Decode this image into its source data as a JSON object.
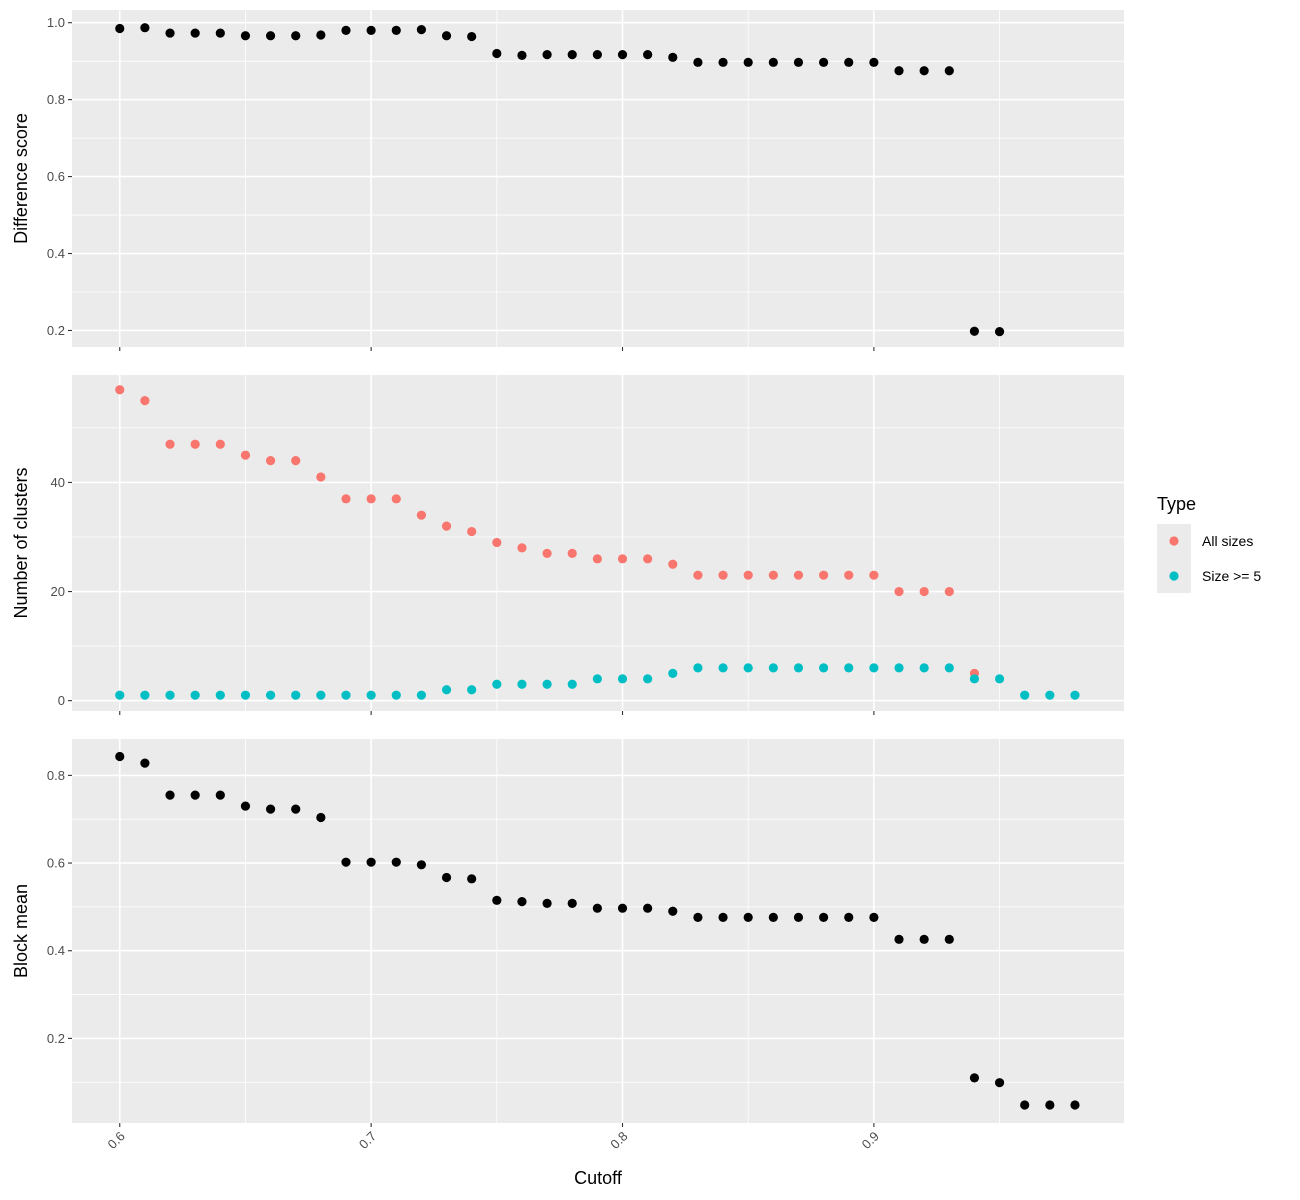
{
  "chart_data": {
    "type": "scatter",
    "x_label": "Cutoff",
    "x_ticks": [
      0.6,
      0.7,
      0.8,
      0.9
    ],
    "x_tick_labels": [
      "0.6",
      "0.7",
      "0.8",
      "0.9"
    ],
    "xlim": [
      0.581,
      0.9995
    ],
    "legend": {
      "title": "Type",
      "placement": "right",
      "entries": [
        {
          "label": "All sizes",
          "color": "#F8766D"
        },
        {
          "label": "Size >= 5",
          "color": "#00BFC4"
        }
      ]
    },
    "panels": [
      {
        "ylabel": "Difference score",
        "ylim": [
          0.157,
          1.033
        ],
        "y_ticks": [
          0.2,
          0.4,
          0.6,
          0.8,
          1.0
        ],
        "y_tick_labels": [
          "0.2",
          "0.4",
          "0.6",
          "0.8",
          "1.0"
        ],
        "series": [
          {
            "color": "#000000",
            "points": [
              [
                0.6,
                0.985
              ],
              [
                0.61,
                0.987
              ],
              [
                0.62,
                0.973
              ],
              [
                0.63,
                0.973
              ],
              [
                0.64,
                0.973
              ],
              [
                0.65,
                0.966
              ],
              [
                0.66,
                0.966
              ],
              [
                0.67,
                0.966
              ],
              [
                0.68,
                0.968
              ],
              [
                0.69,
                0.98
              ],
              [
                0.7,
                0.98
              ],
              [
                0.71,
                0.98
              ],
              [
                0.72,
                0.982
              ],
              [
                0.73,
                0.966
              ],
              [
                0.74,
                0.964
              ],
              [
                0.75,
                0.92
              ],
              [
                0.76,
                0.915
              ],
              [
                0.77,
                0.917
              ],
              [
                0.78,
                0.917
              ],
              [
                0.79,
                0.917
              ],
              [
                0.8,
                0.917
              ],
              [
                0.81,
                0.917
              ],
              [
                0.82,
                0.91
              ],
              [
                0.83,
                0.897
              ],
              [
                0.84,
                0.897
              ],
              [
                0.85,
                0.897
              ],
              [
                0.86,
                0.897
              ],
              [
                0.87,
                0.897
              ],
              [
                0.88,
                0.897
              ],
              [
                0.89,
                0.897
              ],
              [
                0.9,
                0.897
              ],
              [
                0.91,
                0.875
              ],
              [
                0.92,
                0.875
              ],
              [
                0.93,
                0.875
              ],
              [
                0.94,
                0.198
              ],
              [
                0.95,
                0.197
              ]
            ]
          }
        ]
      },
      {
        "ylabel": "Number of clusters",
        "ylim": [
          -1.9,
          59.7
        ],
        "y_ticks": [
          0,
          20,
          40
        ],
        "y_tick_labels": [
          "0",
          "20",
          "40"
        ],
        "series": [
          {
            "name": "All sizes",
            "color": "#F8766D",
            "points": [
              [
                0.6,
                57
              ],
              [
                0.61,
                55
              ],
              [
                0.62,
                47
              ],
              [
                0.63,
                47
              ],
              [
                0.64,
                47
              ],
              [
                0.65,
                45
              ],
              [
                0.66,
                44
              ],
              [
                0.67,
                44
              ],
              [
                0.68,
                41
              ],
              [
                0.69,
                37
              ],
              [
                0.7,
                37
              ],
              [
                0.71,
                37
              ],
              [
                0.72,
                34
              ],
              [
                0.73,
                32
              ],
              [
                0.74,
                31
              ],
              [
                0.75,
                29
              ],
              [
                0.76,
                28
              ],
              [
                0.77,
                27
              ],
              [
                0.78,
                27
              ],
              [
                0.79,
                26
              ],
              [
                0.8,
                26
              ],
              [
                0.81,
                26
              ],
              [
                0.82,
                25
              ],
              [
                0.83,
                23
              ],
              [
                0.84,
                23
              ],
              [
                0.85,
                23
              ],
              [
                0.86,
                23
              ],
              [
                0.87,
                23
              ],
              [
                0.88,
                23
              ],
              [
                0.89,
                23
              ],
              [
                0.9,
                23
              ],
              [
                0.91,
                20
              ],
              [
                0.92,
                20
              ],
              [
                0.93,
                20
              ],
              [
                0.94,
                5
              ]
            ]
          },
          {
            "name": "Size >= 5",
            "color": "#00BFC4",
            "points": [
              [
                0.6,
                1
              ],
              [
                0.61,
                1
              ],
              [
                0.62,
                1
              ],
              [
                0.63,
                1
              ],
              [
                0.64,
                1
              ],
              [
                0.65,
                1
              ],
              [
                0.66,
                1
              ],
              [
                0.67,
                1
              ],
              [
                0.68,
                1
              ],
              [
                0.69,
                1
              ],
              [
                0.7,
                1
              ],
              [
                0.71,
                1
              ],
              [
                0.72,
                1
              ],
              [
                0.73,
                2
              ],
              [
                0.74,
                2
              ],
              [
                0.75,
                3
              ],
              [
                0.76,
                3
              ],
              [
                0.77,
                3
              ],
              [
                0.78,
                3
              ],
              [
                0.79,
                4
              ],
              [
                0.8,
                4
              ],
              [
                0.81,
                4
              ],
              [
                0.82,
                5
              ],
              [
                0.83,
                6
              ],
              [
                0.84,
                6
              ],
              [
                0.85,
                6
              ],
              [
                0.86,
                6
              ],
              [
                0.87,
                6
              ],
              [
                0.88,
                6
              ],
              [
                0.89,
                6
              ],
              [
                0.9,
                6
              ],
              [
                0.91,
                6
              ],
              [
                0.92,
                6
              ],
              [
                0.93,
                6
              ],
              [
                0.94,
                4
              ],
              [
                0.95,
                4
              ],
              [
                0.96,
                1
              ],
              [
                0.97,
                1
              ],
              [
                0.98,
                1
              ]
            ]
          }
        ]
      },
      {
        "ylabel": "Block mean",
        "ylim": [
          0.007,
          0.883
        ],
        "y_ticks": [
          0.2,
          0.4,
          0.6,
          0.8
        ],
        "y_tick_labels": [
          "0.2",
          "0.4",
          "0.6",
          "0.8"
        ],
        "series": [
          {
            "color": "#000000",
            "points": [
              [
                0.6,
                0.843
              ],
              [
                0.61,
                0.828
              ],
              [
                0.62,
                0.755
              ],
              [
                0.63,
                0.755
              ],
              [
                0.64,
                0.755
              ],
              [
                0.65,
                0.73
              ],
              [
                0.66,
                0.723
              ],
              [
                0.67,
                0.723
              ],
              [
                0.68,
                0.704
              ],
              [
                0.69,
                0.602
              ],
              [
                0.7,
                0.602
              ],
              [
                0.71,
                0.602
              ],
              [
                0.72,
                0.596
              ],
              [
                0.73,
                0.567
              ],
              [
                0.74,
                0.564
              ],
              [
                0.75,
                0.515
              ],
              [
                0.76,
                0.512
              ],
              [
                0.77,
                0.508
              ],
              [
                0.78,
                0.508
              ],
              [
                0.79,
                0.497
              ],
              [
                0.8,
                0.497
              ],
              [
                0.81,
                0.497
              ],
              [
                0.82,
                0.49
              ],
              [
                0.83,
                0.476
              ],
              [
                0.84,
                0.476
              ],
              [
                0.85,
                0.476
              ],
              [
                0.86,
                0.476
              ],
              [
                0.87,
                0.476
              ],
              [
                0.88,
                0.476
              ],
              [
                0.89,
                0.476
              ],
              [
                0.9,
                0.476
              ],
              [
                0.91,
                0.426
              ],
              [
                0.92,
                0.426
              ],
              [
                0.93,
                0.426
              ],
              [
                0.94,
                0.11
              ],
              [
                0.95,
                0.099
              ],
              [
                0.96,
                0.048
              ],
              [
                0.97,
                0.048
              ],
              [
                0.98,
                0.048
              ]
            ]
          }
        ]
      }
    ]
  }
}
